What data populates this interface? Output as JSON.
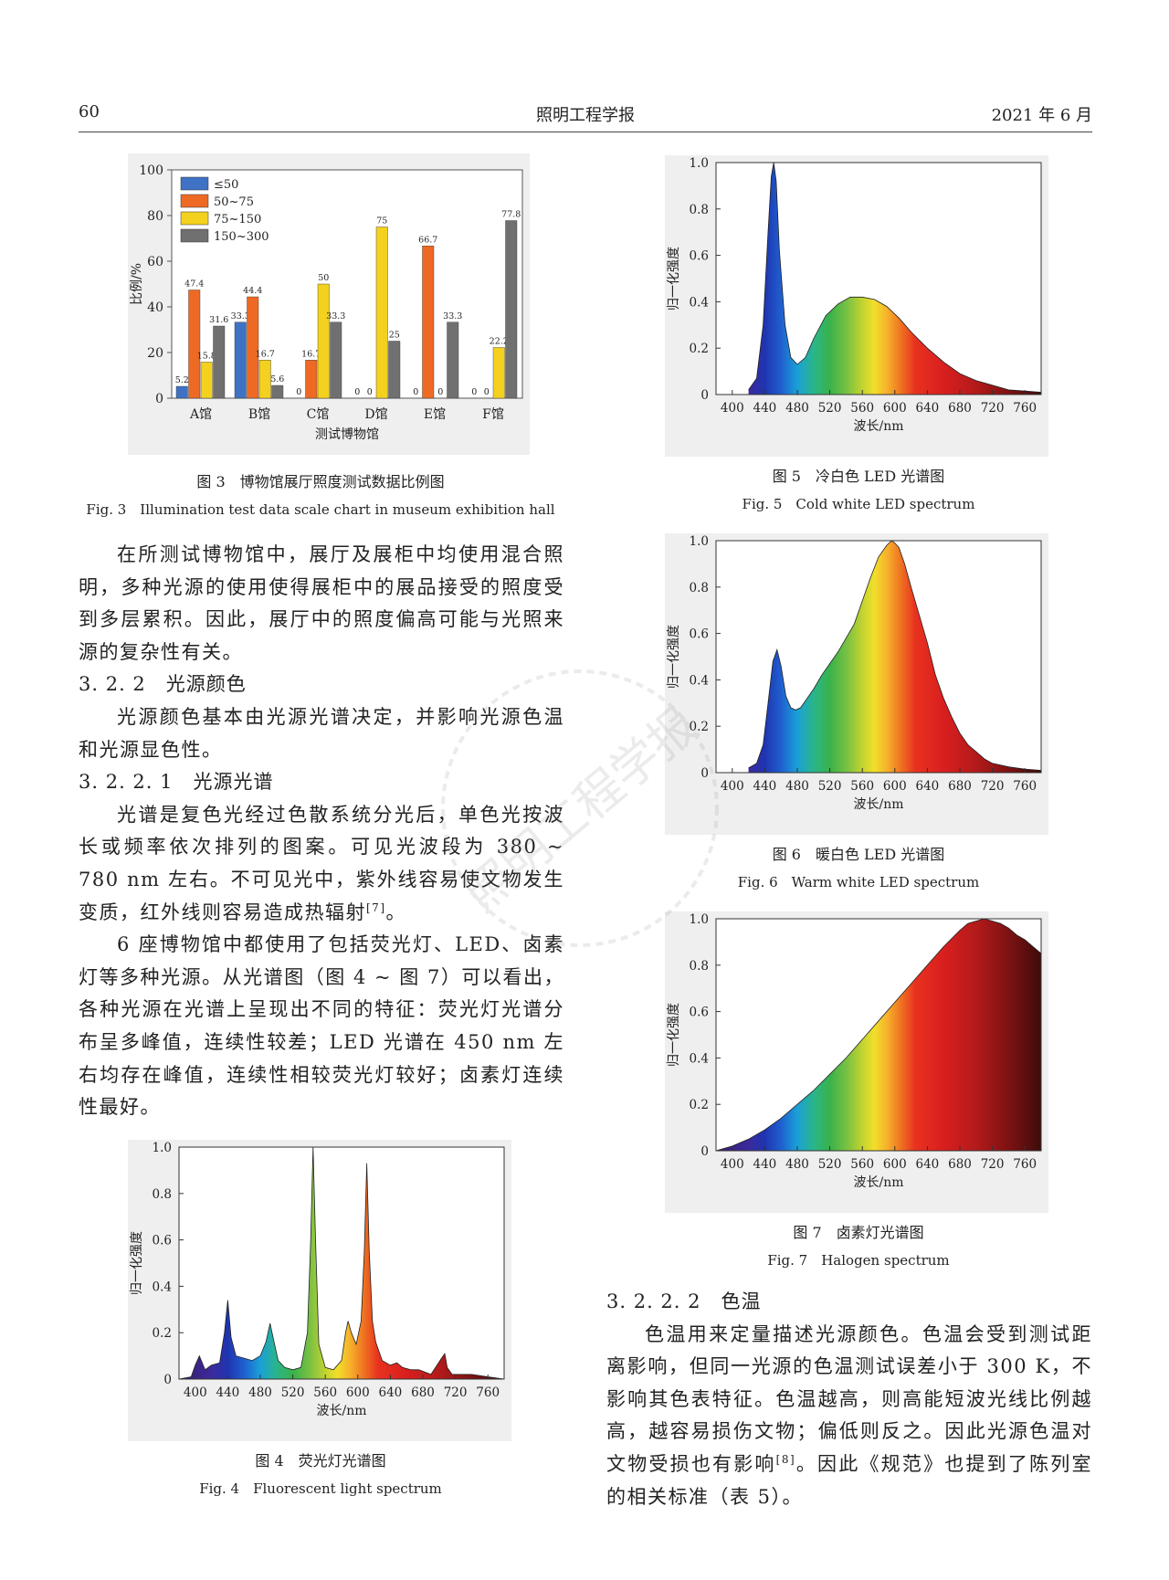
{
  "header": {
    "page_number": "60",
    "journal": "照明工程学报",
    "date": "2021 年 6 月"
  },
  "watermark": {
    "text": "照明工程学报"
  },
  "colors": {
    "blue": "#3f72c4",
    "orange": "#ee6a24",
    "yellow": "#f3d11e",
    "gray": "#707070"
  },
  "fig3": {
    "caption_cn": "图 3　博物馆展厅照度测试数据比例图",
    "caption_en": "Fig. 3　Illumination test data scale chart in museum exhibition hall"
  },
  "fig4": {
    "caption_cn": "图 4　荧光灯光谱图",
    "caption_en": "Fig. 4　Fluorescent light spectrum"
  },
  "fig5": {
    "caption_cn": "图 5　冷白色 LED 光谱图",
    "caption_en": "Fig. 5　Cold white LED spectrum"
  },
  "fig6": {
    "caption_cn": "图 6　暖白色 LED 光谱图",
    "caption_en": "Fig. 6　Warm white LED spectrum"
  },
  "fig7": {
    "caption_cn": "图 7　卤素灯光谱图",
    "caption_en": "Fig. 7　Halogen spectrum"
  },
  "chart_data": [
    {
      "id": "fig3",
      "type": "bar",
      "categories": [
        "A馆",
        "B馆",
        "C馆",
        "D馆",
        "E馆",
        "F馆"
      ],
      "series": [
        {
          "name": "≤50",
          "values": [
            5.2,
            33.3,
            0,
            0,
            0,
            0
          ],
          "labels": [
            "5.2",
            "33.3",
            "0",
            "0",
            "0",
            "0"
          ]
        },
        {
          "name": "50~75",
          "values": [
            47.4,
            44.4,
            16.7,
            0,
            66.7,
            0
          ],
          "labels": [
            "47.4",
            "44.4",
            "16.7",
            "0",
            "66.7",
            "0"
          ]
        },
        {
          "name": "75~150",
          "values": [
            15.8,
            16.7,
            50,
            75,
            0,
            22.2
          ],
          "labels": [
            "15.8",
            "16.7",
            "50",
            "75",
            "0",
            "22.2"
          ]
        },
        {
          "name": "150~300",
          "values": [
            31.6,
            5.6,
            33.3,
            25,
            33.3,
            77.8
          ],
          "labels": [
            "31.6",
            "5.6",
            "33.3",
            "25",
            "33.3",
            "77.8"
          ]
        }
      ],
      "xlabel": "测试博物馆",
      "ylabel": "比例/%",
      "ylim": [
        0,
        100
      ],
      "yticks": [
        "0",
        "20",
        "40",
        "60",
        "80",
        "100"
      ],
      "legend": "top-left"
    },
    {
      "id": "fig4",
      "type": "area",
      "title": "",
      "xlabel": "波长/nm",
      "ylabel": "归一化强度",
      "xlim": [
        380,
        780
      ],
      "ylim": [
        0,
        1.0
      ],
      "xticks": [
        "400",
        "440",
        "480",
        "520",
        "560",
        "600",
        "640",
        "680",
        "720",
        "760"
      ],
      "yticks": [
        "0",
        "0.2",
        "0.4",
        "0.6",
        "0.8",
        "1.0"
      ],
      "x": [
        380,
        395,
        400,
        405,
        412,
        420,
        430,
        436,
        440,
        444,
        450,
        460,
        470,
        480,
        487,
        492,
        497,
        502,
        510,
        520,
        530,
        538,
        542,
        545,
        548,
        552,
        560,
        570,
        580,
        585,
        588,
        592,
        598,
        604,
        608,
        611,
        614,
        618,
        622,
        630,
        640,
        648,
        655,
        665,
        675,
        690,
        703,
        707,
        710,
        716,
        725,
        740,
        760,
        780
      ],
      "y": [
        0,
        0.01,
        0.06,
        0.1,
        0.04,
        0.06,
        0.07,
        0.2,
        0.34,
        0.18,
        0.1,
        0.09,
        0.08,
        0.1,
        0.16,
        0.24,
        0.16,
        0.08,
        0.05,
        0.04,
        0.05,
        0.2,
        0.6,
        1.0,
        0.6,
        0.15,
        0.05,
        0.04,
        0.08,
        0.2,
        0.25,
        0.2,
        0.15,
        0.25,
        0.55,
        0.93,
        0.55,
        0.25,
        0.16,
        0.08,
        0.06,
        0.07,
        0.05,
        0.04,
        0.04,
        0.02,
        0.09,
        0.11,
        0.05,
        0.02,
        0.02,
        0.02,
        0.01,
        0
      ]
    },
    {
      "id": "fig5",
      "type": "area",
      "xlabel": "波长/nm",
      "ylabel": "归一化强度",
      "xlim": [
        380,
        780
      ],
      "ylim": [
        0,
        1.0
      ],
      "xticks": [
        "400",
        "440",
        "480",
        "520",
        "560",
        "600",
        "640",
        "680",
        "720",
        "760"
      ],
      "yticks": [
        "0",
        "0.2",
        "0.4",
        "0.6",
        "0.8",
        "1.0"
      ],
      "x": [
        420,
        430,
        438,
        444,
        448,
        451,
        454,
        458,
        465,
        472,
        480,
        490,
        500,
        515,
        530,
        545,
        560,
        575,
        590,
        605,
        620,
        640,
        660,
        680,
        700,
        720,
        740,
        760,
        780
      ],
      "y": [
        0.02,
        0.07,
        0.3,
        0.7,
        0.94,
        1.0,
        0.92,
        0.62,
        0.3,
        0.16,
        0.13,
        0.16,
        0.24,
        0.34,
        0.39,
        0.42,
        0.42,
        0.41,
        0.38,
        0.33,
        0.27,
        0.2,
        0.14,
        0.09,
        0.06,
        0.04,
        0.02,
        0.015,
        0.01
      ]
    },
    {
      "id": "fig6",
      "type": "area",
      "xlabel": "波长/nm",
      "ylabel": "归一化强度",
      "xlim": [
        380,
        780
      ],
      "ylim": [
        0,
        1.0
      ],
      "xticks": [
        "400",
        "440",
        "480",
        "520",
        "560",
        "600",
        "640",
        "680",
        "720",
        "760"
      ],
      "yticks": [
        "0",
        "0.2",
        "0.4",
        "0.6",
        "0.8",
        "1.0"
      ],
      "x": [
        420,
        430,
        438,
        444,
        450,
        455,
        460,
        466,
        472,
        478,
        484,
        492,
        500,
        510,
        520,
        530,
        540,
        550,
        560,
        570,
        580,
        590,
        596,
        600,
        605,
        612,
        620,
        630,
        640,
        650,
        660,
        670,
        680,
        690,
        700,
        710,
        720,
        740,
        760,
        780
      ],
      "y": [
        0.02,
        0.04,
        0.12,
        0.3,
        0.48,
        0.53,
        0.46,
        0.33,
        0.28,
        0.27,
        0.28,
        0.32,
        0.36,
        0.42,
        0.47,
        0.52,
        0.58,
        0.64,
        0.74,
        0.84,
        0.93,
        0.98,
        1.0,
        0.99,
        0.97,
        0.9,
        0.8,
        0.68,
        0.56,
        0.42,
        0.32,
        0.24,
        0.17,
        0.12,
        0.09,
        0.06,
        0.04,
        0.025,
        0.015,
        0.01
      ]
    },
    {
      "id": "fig7",
      "type": "area",
      "xlabel": "波长/nm",
      "ylabel": "归一化强度",
      "xlim": [
        380,
        780
      ],
      "ylim": [
        0,
        1.0
      ],
      "xticks": [
        "400",
        "440",
        "480",
        "520",
        "560",
        "600",
        "640",
        "680",
        "720",
        "760"
      ],
      "yticks": [
        "0",
        "0.2",
        "0.4",
        "0.6",
        "0.8",
        "1.0"
      ],
      "x": [
        380,
        400,
        420,
        440,
        460,
        480,
        500,
        520,
        540,
        560,
        580,
        600,
        620,
        640,
        660,
        680,
        690,
        700,
        710,
        720,
        730,
        740,
        750,
        760,
        770,
        780
      ],
      "y": [
        0.0,
        0.02,
        0.05,
        0.09,
        0.14,
        0.2,
        0.26,
        0.33,
        0.4,
        0.48,
        0.56,
        0.64,
        0.72,
        0.8,
        0.88,
        0.95,
        0.98,
        0.99,
        1.0,
        0.99,
        0.98,
        0.96,
        0.93,
        0.91,
        0.88,
        0.85
      ]
    }
  ],
  "body": {
    "p1": "在所测试博物馆中，展厅及展柜中均使用混合照明，多种光源的使用使得展柜中的展品接受的照度受到多层累积。因此，展厅中的照度偏高可能与光照来源的复杂性有关。",
    "h322": "3. 2. 2　光源颜色",
    "p2": "光源颜色基本由光源光谱决定，并影响光源色温和光源显色性。",
    "h3221": "3. 2. 2. 1　光源光谱",
    "p3": "光谱是复色光经过色散系统分光后，单色光按波长或频率依次排列的图案。可见光波段为 380 ~ 780 nm 左右。不可见光中，紫外线容易使文物发生变质，红外线则容易造成热辐射",
    "p3_ref": "[7]",
    "p3_end": "。",
    "p4": "6 座博物馆中都使用了包括荧光灯、LED、卤素灯等多种光源。从光谱图（图 4 ~ 图 7）可以看出，各种光源在光谱上呈现出不同的特征：荧光灯光谱分布呈多峰值，连续性较差；LED 光谱在 450 nm 左右均存在峰值，连续性相较荧光灯较好；卤素灯连续性最好。",
    "h3222": "3. 2. 2. 2　色温",
    "p5": "色温用来定量描述光源颜色。色温会受到测试距离影响，但同一光源的色温测试误差小于 300 K，不影响其色表特征。色温越高，则高能短波光线比例越高，越容易损伤文物；偏低则反之。因此光源色温对文物受损也有影响",
    "p5_ref": "[8]",
    "p5_end": "。因此《规范》也提到了陈列室的相关标准（表 5）。"
  }
}
